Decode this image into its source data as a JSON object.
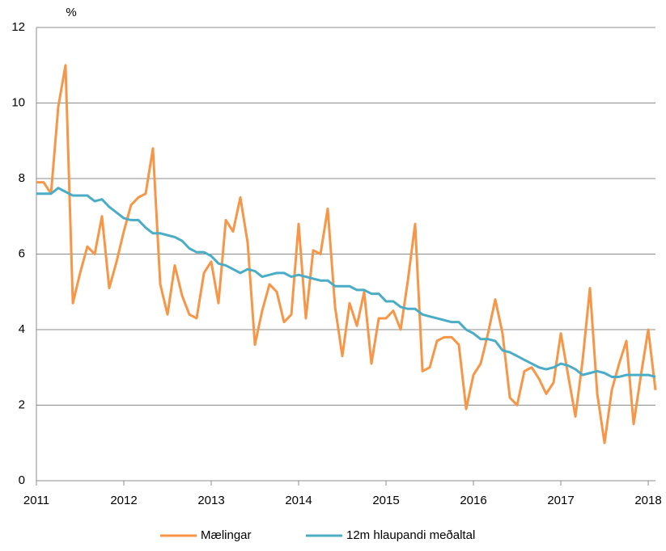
{
  "chart_data": {
    "type": "line",
    "y_label": "%",
    "x": [
      2011,
      2011.083,
      2011.167,
      2011.25,
      2011.333,
      2011.417,
      2011.5,
      2011.583,
      2011.667,
      2011.75,
      2011.833,
      2011.917,
      2012,
      2012.083,
      2012.167,
      2012.25,
      2012.333,
      2012.417,
      2012.5,
      2012.583,
      2012.667,
      2012.75,
      2012.833,
      2012.917,
      2013,
      2013.083,
      2013.167,
      2013.25,
      2013.333,
      2013.417,
      2013.5,
      2013.583,
      2013.667,
      2013.75,
      2013.833,
      2013.917,
      2014,
      2014.083,
      2014.167,
      2014.25,
      2014.333,
      2014.417,
      2014.5,
      2014.583,
      2014.667,
      2014.75,
      2014.833,
      2014.917,
      2015,
      2015.083,
      2015.167,
      2015.25,
      2015.333,
      2015.417,
      2015.5,
      2015.583,
      2015.667,
      2015.75,
      2015.833,
      2015.917,
      2016,
      2016.083,
      2016.167,
      2016.25,
      2016.333,
      2016.417,
      2016.5,
      2016.583,
      2016.667,
      2016.75,
      2016.833,
      2016.917,
      2017,
      2017.083,
      2017.167,
      2017.25,
      2017.333,
      2017.417,
      2017.5,
      2017.583,
      2017.667,
      2017.75,
      2017.833,
      2017.917,
      2018,
      2018.083
    ],
    "series": [
      {
        "name": "Mælingar",
        "color": "#f79646",
        "values": [
          7.9,
          7.9,
          7.6,
          9.9,
          11.0,
          4.7,
          5.5,
          6.2,
          6.0,
          7.0,
          5.1,
          5.8,
          6.6,
          7.3,
          7.5,
          7.6,
          8.8,
          5.2,
          4.4,
          5.7,
          4.9,
          4.4,
          4.3,
          5.5,
          5.8,
          4.7,
          6.9,
          6.6,
          7.5,
          6.3,
          3.6,
          4.5,
          5.2,
          5.0,
          4.2,
          4.4,
          6.8,
          4.3,
          6.1,
          6.0,
          7.2,
          4.6,
          3.3,
          4.7,
          4.1,
          5.0,
          3.1,
          4.3,
          4.3,
          4.5,
          4.0,
          5.3,
          6.8,
          2.9,
          3.0,
          3.7,
          3.8,
          3.8,
          3.6,
          1.9,
          2.8,
          3.1,
          3.9,
          4.8,
          3.9,
          2.2,
          2.0,
          2.9,
          3.0,
          2.7,
          2.3,
          2.6,
          3.9,
          2.8,
          1.7,
          3.2,
          5.1,
          2.3,
          1.0,
          2.4,
          3.1,
          3.7,
          1.5,
          2.8,
          4.0,
          2.4
        ]
      },
      {
        "name": "12m hlaupandi meðaltal",
        "color": "#4bacc6",
        "values": [
          7.6,
          7.6,
          7.6,
          7.75,
          7.65,
          7.55,
          7.55,
          7.55,
          7.4,
          7.45,
          7.25,
          7.1,
          6.95,
          6.9,
          6.9,
          6.7,
          6.55,
          6.55,
          6.5,
          6.45,
          6.35,
          6.15,
          6.05,
          6.05,
          5.95,
          5.75,
          5.7,
          5.6,
          5.5,
          5.6,
          5.55,
          5.4,
          5.45,
          5.5,
          5.5,
          5.4,
          5.45,
          5.4,
          5.35,
          5.3,
          5.3,
          5.15,
          5.15,
          5.15,
          5.05,
          5.05,
          4.95,
          4.95,
          4.75,
          4.75,
          4.6,
          4.55,
          4.55,
          4.4,
          4.35,
          4.3,
          4.25,
          4.2,
          4.2,
          4.0,
          3.9,
          3.75,
          3.75,
          3.7,
          3.45,
          3.4,
          3.3,
          3.2,
          3.1,
          3.0,
          2.95,
          3.0,
          3.1,
          3.05,
          2.95,
          2.8,
          2.85,
          2.9,
          2.85,
          2.75,
          2.75,
          2.8,
          2.8,
          2.8,
          2.8,
          2.75
        ]
      }
    ],
    "xlim": [
      2011,
      2018.083
    ],
    "xticks": [
      2011,
      2012,
      2013,
      2014,
      2015,
      2016,
      2017,
      2018
    ],
    "ylim": [
      0,
      12
    ],
    "yticks": [
      0,
      2,
      4,
      6,
      8,
      10,
      12
    ],
    "grid": true,
    "legend": "bottom"
  }
}
